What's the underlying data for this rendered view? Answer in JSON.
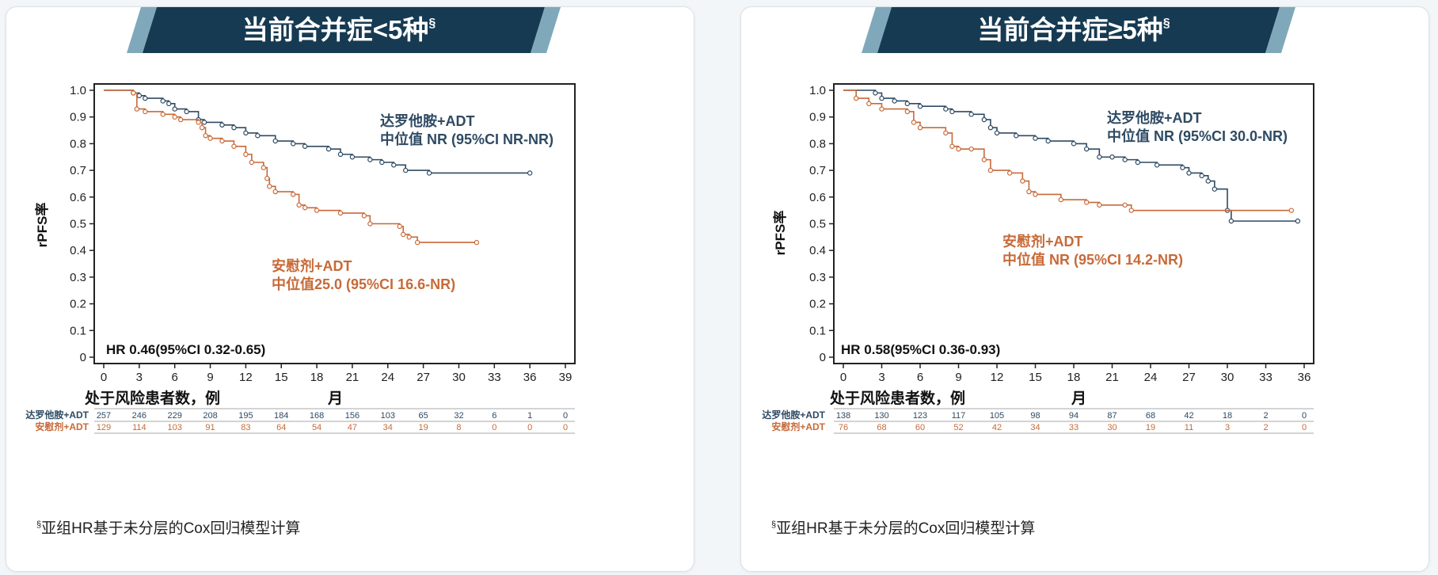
{
  "colors": {
    "banner_dark": "#163a52",
    "banner_light": "#7fa9ba",
    "darolutamide": "#2e4a63",
    "placebo": "#c76a38",
    "grid_line": "#aaaaaa"
  },
  "footnote": {
    "mark": "§",
    "text": "亚组HR基于未分层的Cox回归模型计算"
  },
  "panels": [
    {
      "title": "当前合并症<5种",
      "title_sup": "§",
      "ylabel": "rPFS率",
      "xlabel": "月",
      "risk_header": "处于风险患者数，例",
      "hr_text": "HR 0.46(95%CI 0.32-0.65)",
      "drug_label": "达罗他胺+ADT",
      "drug_median": "中位值 NR (95%CI NR-NR)",
      "pbo_label": "安慰剂+ADT",
      "pbo_median": "中位值25.0 (95%CI 16.6-NR)",
      "risk_rows": [
        {
          "label": "达罗他胺+ADT",
          "values": [
            "257",
            "246",
            "229",
            "208",
            "195",
            "184",
            "168",
            "156",
            "103",
            "65",
            "32",
            "6",
            "1",
            "0"
          ]
        },
        {
          "label": "安慰剂+ADT",
          "values": [
            "129",
            "114",
            "103",
            "91",
            "83",
            "64",
            "54",
            "47",
            "34",
            "19",
            "8",
            "0",
            "0",
            "0"
          ]
        }
      ]
    },
    {
      "title": "当前合并症≥5种",
      "title_sup": "§",
      "ylabel": "rPFS率",
      "xlabel": "月",
      "risk_header": "处于风险患者数，例",
      "hr_text": "HR 0.58(95%CI 0.36-0.93)",
      "drug_label": "达罗他胺+ADT",
      "drug_median": "中位值 NR (95%CI 30.0-NR)",
      "pbo_label": "安慰剂+ADT",
      "pbo_median": "中位值 NR (95%CI 14.2-NR)",
      "risk_rows": [
        {
          "label": "达罗他胺+ADT",
          "values": [
            "138",
            "130",
            "123",
            "117",
            "105",
            "98",
            "94",
            "87",
            "68",
            "42",
            "18",
            "2",
            "0"
          ]
        },
        {
          "label": "安慰剂+ADT",
          "values": [
            "76",
            "68",
            "60",
            "52",
            "42",
            "34",
            "33",
            "30",
            "19",
            "11",
            "3",
            "2",
            "0"
          ]
        }
      ]
    }
  ],
  "chart_data": [
    {
      "type": "line",
      "title": "当前合并症<5种",
      "xlabel": "月",
      "ylabel": "rPFS率",
      "xlim": [
        0,
        39
      ],
      "ylim": [
        0,
        1.0
      ],
      "xticks": [
        "0",
        "3",
        "6",
        "9",
        "12",
        "15",
        "18",
        "21",
        "24",
        "27",
        "30",
        "33",
        "36",
        "39"
      ],
      "yticks": [
        "0",
        "0.1",
        "0.2",
        "0.3",
        "0.4",
        "0.5",
        "0.6",
        "0.7",
        "0.8",
        "0.9",
        "1.0"
      ],
      "series": [
        {
          "name": "达罗他胺+ADT",
          "steps": [
            [
              0,
              1.0
            ],
            [
              2.5,
              0.99
            ],
            [
              3,
              0.98
            ],
            [
              3.5,
              0.97
            ],
            [
              5,
              0.96
            ],
            [
              5.5,
              0.95
            ],
            [
              6,
              0.93
            ],
            [
              7,
              0.92
            ],
            [
              8,
              0.89
            ],
            [
              8.5,
              0.88
            ],
            [
              10,
              0.87
            ],
            [
              11,
              0.86
            ],
            [
              12,
              0.84
            ],
            [
              13,
              0.83
            ],
            [
              14.5,
              0.81
            ],
            [
              16,
              0.8
            ],
            [
              17,
              0.79
            ],
            [
              19,
              0.78
            ],
            [
              20,
              0.76
            ],
            [
              21,
              0.75
            ],
            [
              22.5,
              0.74
            ],
            [
              23.5,
              0.73
            ],
            [
              24.5,
              0.72
            ],
            [
              25.5,
              0.7
            ],
            [
              27.5,
              0.69
            ],
            [
              36,
              0.69
            ]
          ]
        },
        {
          "name": "安慰剂+ADT",
          "steps": [
            [
              0,
              1.0
            ],
            [
              2.5,
              0.99
            ],
            [
              2.8,
              0.93
            ],
            [
              3.5,
              0.92
            ],
            [
              5,
              0.91
            ],
            [
              6,
              0.9
            ],
            [
              6.5,
              0.89
            ],
            [
              8,
              0.88
            ],
            [
              8.3,
              0.86
            ],
            [
              8.6,
              0.83
            ],
            [
              9,
              0.82
            ],
            [
              10,
              0.81
            ],
            [
              11,
              0.79
            ],
            [
              12,
              0.76
            ],
            [
              12.5,
              0.73
            ],
            [
              13.5,
              0.71
            ],
            [
              13.8,
              0.67
            ],
            [
              14,
              0.64
            ],
            [
              14.5,
              0.62
            ],
            [
              16,
              0.61
            ],
            [
              16.5,
              0.57
            ],
            [
              17,
              0.56
            ],
            [
              18,
              0.55
            ],
            [
              20,
              0.54
            ],
            [
              22,
              0.53
            ],
            [
              22.5,
              0.5
            ],
            [
              25,
              0.49
            ],
            [
              25.3,
              0.46
            ],
            [
              25.8,
              0.45
            ],
            [
              26.5,
              0.43
            ],
            [
              31.5,
              0.43
            ]
          ]
        }
      ]
    },
    {
      "type": "line",
      "title": "当前合并症≥5种",
      "xlabel": "月",
      "ylabel": "rPFS率",
      "xlim": [
        0,
        36
      ],
      "ylim": [
        0,
        1.0
      ],
      "xticks": [
        "0",
        "3",
        "6",
        "9",
        "12",
        "15",
        "18",
        "21",
        "24",
        "27",
        "30",
        "33",
        "36"
      ],
      "yticks": [
        "0",
        "0.1",
        "0.2",
        "0.3",
        "0.4",
        "0.5",
        "0.6",
        "0.7",
        "0.8",
        "0.9",
        "1.0"
      ],
      "series": [
        {
          "name": "达罗他胺+ADT",
          "steps": [
            [
              0,
              1.0
            ],
            [
              2.5,
              0.99
            ],
            [
              3,
              0.97
            ],
            [
              4,
              0.96
            ],
            [
              5,
              0.95
            ],
            [
              6,
              0.94
            ],
            [
              8,
              0.93
            ],
            [
              8.5,
              0.92
            ],
            [
              10,
              0.91
            ],
            [
              11,
              0.89
            ],
            [
              11.5,
              0.86
            ],
            [
              12,
              0.84
            ],
            [
              13.5,
              0.83
            ],
            [
              15,
              0.82
            ],
            [
              16,
              0.81
            ],
            [
              18,
              0.8
            ],
            [
              19,
              0.78
            ],
            [
              20,
              0.75
            ],
            [
              21,
              0.75
            ],
            [
              22,
              0.74
            ],
            [
              23,
              0.73
            ],
            [
              24.5,
              0.72
            ],
            [
              26.5,
              0.71
            ],
            [
              27,
              0.69
            ],
            [
              28,
              0.68
            ],
            [
              28.5,
              0.66
            ],
            [
              29,
              0.63
            ],
            [
              30,
              0.55
            ],
            [
              30.3,
              0.51
            ],
            [
              35.5,
              0.51
            ]
          ]
        },
        {
          "name": "安慰剂+ADT",
          "steps": [
            [
              0,
              1.0
            ],
            [
              1,
              0.97
            ],
            [
              2,
              0.95
            ],
            [
              3,
              0.93
            ],
            [
              5,
              0.92
            ],
            [
              5.5,
              0.88
            ],
            [
              6,
              0.86
            ],
            [
              8,
              0.84
            ],
            [
              8.5,
              0.79
            ],
            [
              9,
              0.78
            ],
            [
              10,
              0.78
            ],
            [
              11,
              0.74
            ],
            [
              11.5,
              0.7
            ],
            [
              13,
              0.69
            ],
            [
              14,
              0.66
            ],
            [
              14.5,
              0.62
            ],
            [
              15,
              0.61
            ],
            [
              17,
              0.59
            ],
            [
              19,
              0.58
            ],
            [
              20,
              0.57
            ],
            [
              22,
              0.57
            ],
            [
              22.5,
              0.55
            ],
            [
              35,
              0.55
            ]
          ]
        }
      ]
    }
  ]
}
